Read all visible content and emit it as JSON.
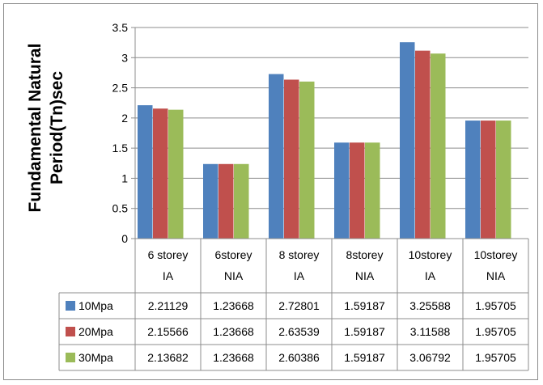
{
  "chart_data": {
    "type": "bar",
    "ylabel_line1": "Fundamental Natural",
    "ylabel_line2": "Period(Tn)sec",
    "ylim": [
      0,
      3.5
    ],
    "yticks": [
      "0",
      "0.5",
      "1",
      "1.5",
      "2",
      "2.5",
      "3",
      "3.5"
    ],
    "grid": true,
    "legend": "data-table",
    "categories": [
      [
        "6 storey",
        "IA"
      ],
      [
        "6storey",
        "NIA"
      ],
      [
        "8 storey",
        "IA"
      ],
      [
        "8storey",
        "NIA"
      ],
      [
        "10storey",
        "IA"
      ],
      [
        "10storey",
        "NIA"
      ]
    ],
    "series": [
      {
        "name": "10Mpa",
        "color": "#4f81bd",
        "values": [
          2.21129,
          1.23668,
          2.72801,
          1.59187,
          3.25588,
          1.95705
        ],
        "labels": [
          "2.21129",
          "1.23668",
          "2.72801",
          "1.59187",
          "3.25588",
          "1.95705"
        ]
      },
      {
        "name": "20Mpa",
        "color": "#c0504d",
        "values": [
          2.15566,
          1.23668,
          2.63539,
          1.59187,
          3.11588,
          1.95705
        ],
        "labels": [
          "2.15566",
          "1.23668",
          "2.63539",
          "1.59187",
          "3.11588",
          "1.95705"
        ]
      },
      {
        "name": "30Mpa",
        "color": "#9bbb59",
        "values": [
          2.13682,
          1.23668,
          2.60386,
          1.59187,
          3.06792,
          1.95705
        ],
        "labels": [
          "2.13682",
          "1.23668",
          "2.60386",
          "1.59187",
          "3.06792",
          "1.95705"
        ]
      }
    ]
  }
}
